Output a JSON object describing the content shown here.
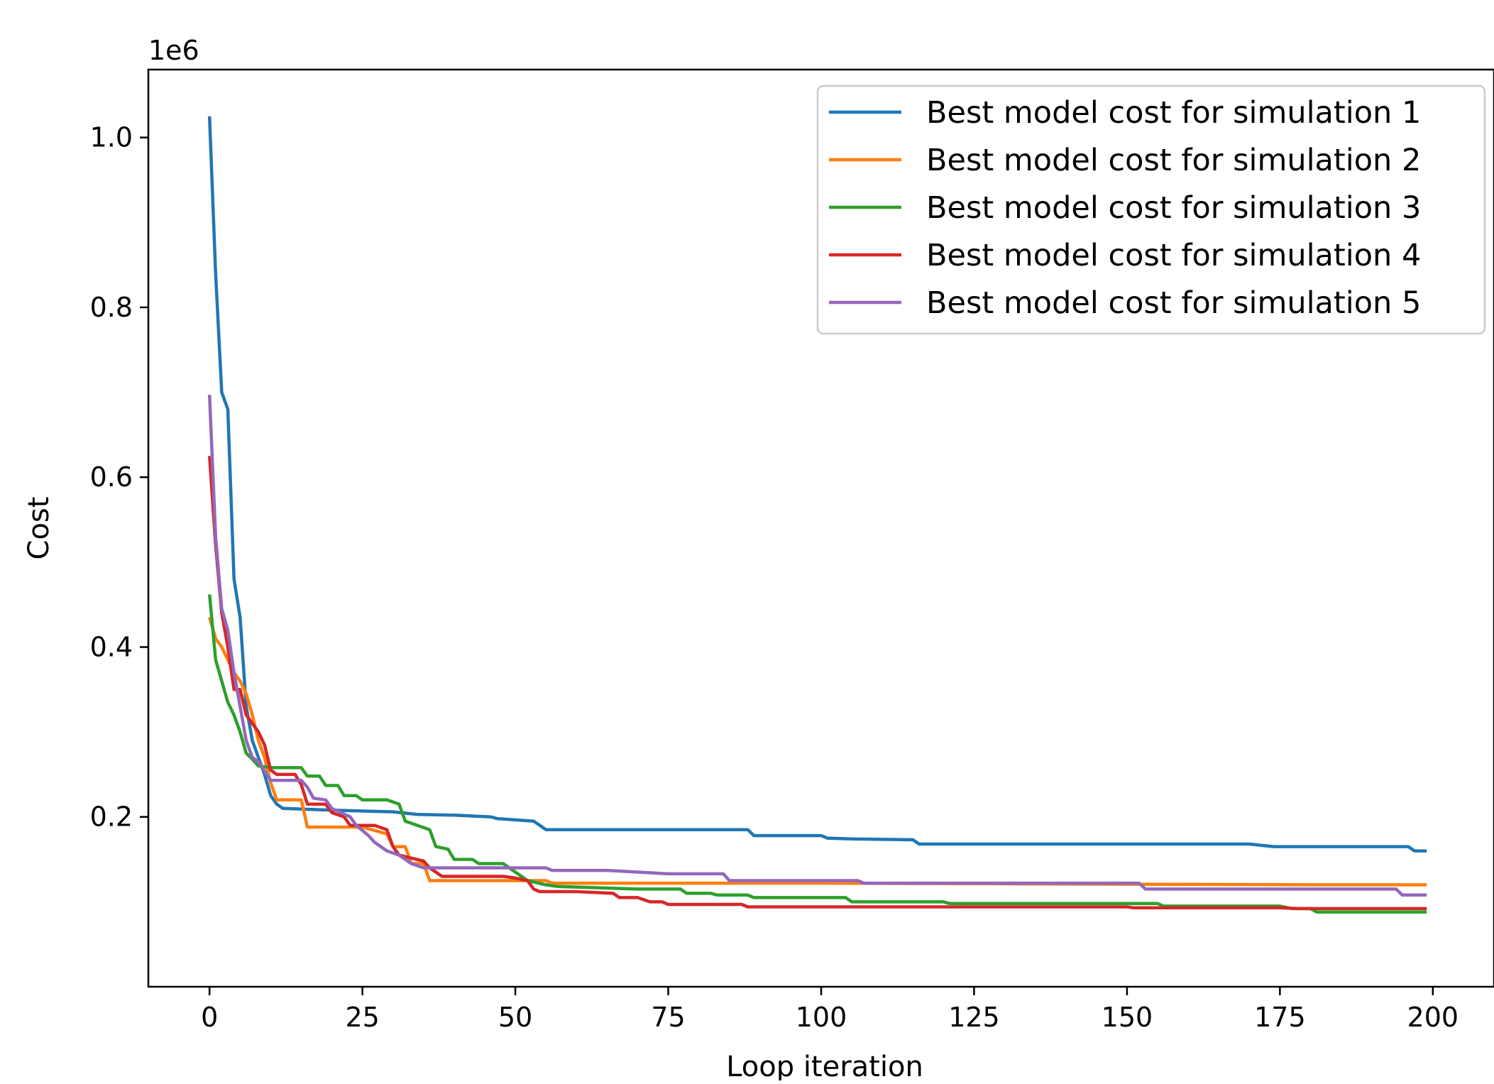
{
  "chart_data": {
    "type": "line",
    "title": "",
    "xlabel": "Loop iteration",
    "ylabel": "Cost",
    "y_offset_label": "1e6",
    "xlim": [
      -10,
      210
    ],
    "ylim": [
      0,
      1080000
    ],
    "x_ticks": [
      0,
      25,
      50,
      75,
      100,
      125,
      150,
      175,
      200
    ],
    "y_ticks": [
      200000,
      400000,
      600000,
      800000,
      1000000
    ],
    "x_tick_labels": [
      "0",
      "25",
      "50",
      "75",
      "100",
      "125",
      "150",
      "175",
      "200"
    ],
    "y_tick_labels": [
      "0.2",
      "0.4",
      "0.6",
      "0.8",
      "1.0"
    ],
    "grid": false,
    "legend_position": "top-right",
    "series": [
      {
        "name": "Best model cost for simulation 1",
        "color": "#1f77b4",
        "points": [
          [
            0,
            1025000
          ],
          [
            1,
            840000
          ],
          [
            2,
            700000
          ],
          [
            3,
            680000
          ],
          [
            4,
            480000
          ],
          [
            5,
            435000
          ],
          [
            6,
            330000
          ],
          [
            7,
            290000
          ],
          [
            9,
            250000
          ],
          [
            10,
            225000
          ],
          [
            11,
            215000
          ],
          [
            12,
            210000
          ],
          [
            20,
            208000
          ],
          [
            30,
            206000
          ],
          [
            34,
            203000
          ],
          [
            40,
            202000
          ],
          [
            46,
            200000
          ],
          [
            47,
            198000
          ],
          [
            53,
            195000
          ],
          [
            55,
            185000
          ],
          [
            75,
            185000
          ],
          [
            88,
            185000
          ],
          [
            89,
            178000
          ],
          [
            100,
            178000
          ],
          [
            101,
            175000
          ],
          [
            105,
            174000
          ],
          [
            115,
            173000
          ],
          [
            116,
            168000
          ],
          [
            130,
            168000
          ],
          [
            170,
            168000
          ],
          [
            174,
            165000
          ],
          [
            196,
            165000
          ],
          [
            197,
            160000
          ],
          [
            199,
            160000
          ]
        ]
      },
      {
        "name": "Best model cost for simulation 2",
        "color": "#ff7f0e",
        "points": [
          [
            0,
            435000
          ],
          [
            1,
            410000
          ],
          [
            2,
            400000
          ],
          [
            3,
            385000
          ],
          [
            4,
            370000
          ],
          [
            5,
            360000
          ],
          [
            6,
            345000
          ],
          [
            7,
            320000
          ],
          [
            8,
            290000
          ],
          [
            9,
            270000
          ],
          [
            10,
            240000
          ],
          [
            11,
            220000
          ],
          [
            15,
            220000
          ],
          [
            16,
            188000
          ],
          [
            25,
            188000
          ],
          [
            29,
            180000
          ],
          [
            30,
            165000
          ],
          [
            32,
            165000
          ],
          [
            33,
            145000
          ],
          [
            35,
            145000
          ],
          [
            36,
            125000
          ],
          [
            55,
            125000
          ],
          [
            56,
            122000
          ],
          [
            100,
            122000
          ],
          [
            180,
            120000
          ],
          [
            199,
            120000
          ]
        ]
      },
      {
        "name": "Best model cost for simulation 3",
        "color": "#2ca02c",
        "points": [
          [
            0,
            462000
          ],
          [
            1,
            385000
          ],
          [
            2,
            360000
          ],
          [
            3,
            335000
          ],
          [
            4,
            320000
          ],
          [
            5,
            300000
          ],
          [
            6,
            275000
          ],
          [
            7,
            268000
          ],
          [
            8,
            260000
          ],
          [
            10,
            258000
          ],
          [
            15,
            258000
          ],
          [
            16,
            248000
          ],
          [
            18,
            248000
          ],
          [
            19,
            237000
          ],
          [
            21,
            237000
          ],
          [
            22,
            225000
          ],
          [
            24,
            225000
          ],
          [
            25,
            220000
          ],
          [
            29,
            220000
          ],
          [
            31,
            215000
          ],
          [
            32,
            195000
          ],
          [
            36,
            185000
          ],
          [
            37,
            165000
          ],
          [
            39,
            162000
          ],
          [
            40,
            150000
          ],
          [
            43,
            150000
          ],
          [
            44,
            145000
          ],
          [
            48,
            145000
          ],
          [
            50,
            135000
          ],
          [
            52,
            125000
          ],
          [
            55,
            120000
          ],
          [
            57,
            118000
          ],
          [
            70,
            115000
          ],
          [
            77,
            115000
          ],
          [
            78,
            110000
          ],
          [
            82,
            110000
          ],
          [
            83,
            108000
          ],
          [
            88,
            108000
          ],
          [
            89,
            105000
          ],
          [
            104,
            105000
          ],
          [
            105,
            100000
          ],
          [
            120,
            100000
          ],
          [
            121,
            98000
          ],
          [
            155,
            98000
          ],
          [
            156,
            95000
          ],
          [
            175,
            95000
          ],
          [
            177,
            92000
          ],
          [
            180,
            92000
          ],
          [
            181,
            88000
          ],
          [
            199,
            88000
          ]
        ]
      },
      {
        "name": "Best model cost for simulation 4",
        "color": "#d62728",
        "points": [
          [
            0,
            625000
          ],
          [
            1,
            520000
          ],
          [
            2,
            440000
          ],
          [
            3,
            400000
          ],
          [
            4,
            350000
          ],
          [
            5,
            350000
          ],
          [
            6,
            320000
          ],
          [
            7,
            310000
          ],
          [
            8,
            300000
          ],
          [
            9,
            285000
          ],
          [
            10,
            255000
          ],
          [
            11,
            250000
          ],
          [
            14,
            250000
          ],
          [
            15,
            238000
          ],
          [
            16,
            215000
          ],
          [
            19,
            215000
          ],
          [
            20,
            205000
          ],
          [
            22,
            200000
          ],
          [
            23,
            190000
          ],
          [
            27,
            190000
          ],
          [
            29,
            185000
          ],
          [
            30,
            165000
          ],
          [
            31,
            155000
          ],
          [
            35,
            148000
          ],
          [
            36,
            140000
          ],
          [
            37,
            135000
          ],
          [
            38,
            130000
          ],
          [
            48,
            130000
          ],
          [
            50,
            128000
          ],
          [
            52,
            125000
          ],
          [
            53,
            115000
          ],
          [
            54,
            112000
          ],
          [
            60,
            112000
          ],
          [
            66,
            110000
          ],
          [
            67,
            105000
          ],
          [
            70,
            105000
          ],
          [
            72,
            100000
          ],
          [
            74,
            100000
          ],
          [
            75,
            97000
          ],
          [
            87,
            97000
          ],
          [
            88,
            94000
          ],
          [
            150,
            94000
          ],
          [
            151,
            93000
          ],
          [
            175,
            93000
          ],
          [
            178,
            92000
          ],
          [
            199,
            92000
          ]
        ]
      },
      {
        "name": "Best model cost for simulation 5",
        "color": "#9467bd",
        "points": [
          [
            0,
            697000
          ],
          [
            1,
            530000
          ],
          [
            2,
            445000
          ],
          [
            3,
            420000
          ],
          [
            4,
            370000
          ],
          [
            5,
            330000
          ],
          [
            6,
            290000
          ],
          [
            7,
            270000
          ],
          [
            8,
            265000
          ],
          [
            10,
            243000
          ],
          [
            15,
            243000
          ],
          [
            16,
            235000
          ],
          [
            17,
            222000
          ],
          [
            19,
            220000
          ],
          [
            20,
            210000
          ],
          [
            23,
            200000
          ],
          [
            24,
            190000
          ],
          [
            26,
            178000
          ],
          [
            27,
            170000
          ],
          [
            29,
            160000
          ],
          [
            31,
            155000
          ],
          [
            33,
            145000
          ],
          [
            35,
            140000
          ],
          [
            55,
            140000
          ],
          [
            56,
            137000
          ],
          [
            65,
            137000
          ],
          [
            70,
            135000
          ],
          [
            75,
            133000
          ],
          [
            84,
            133000
          ],
          [
            85,
            125000
          ],
          [
            106,
            125000
          ],
          [
            107,
            122000
          ],
          [
            152,
            122000
          ],
          [
            153,
            115000
          ],
          [
            194,
            115000
          ],
          [
            195,
            108000
          ],
          [
            199,
            108000
          ]
        ]
      }
    ]
  }
}
